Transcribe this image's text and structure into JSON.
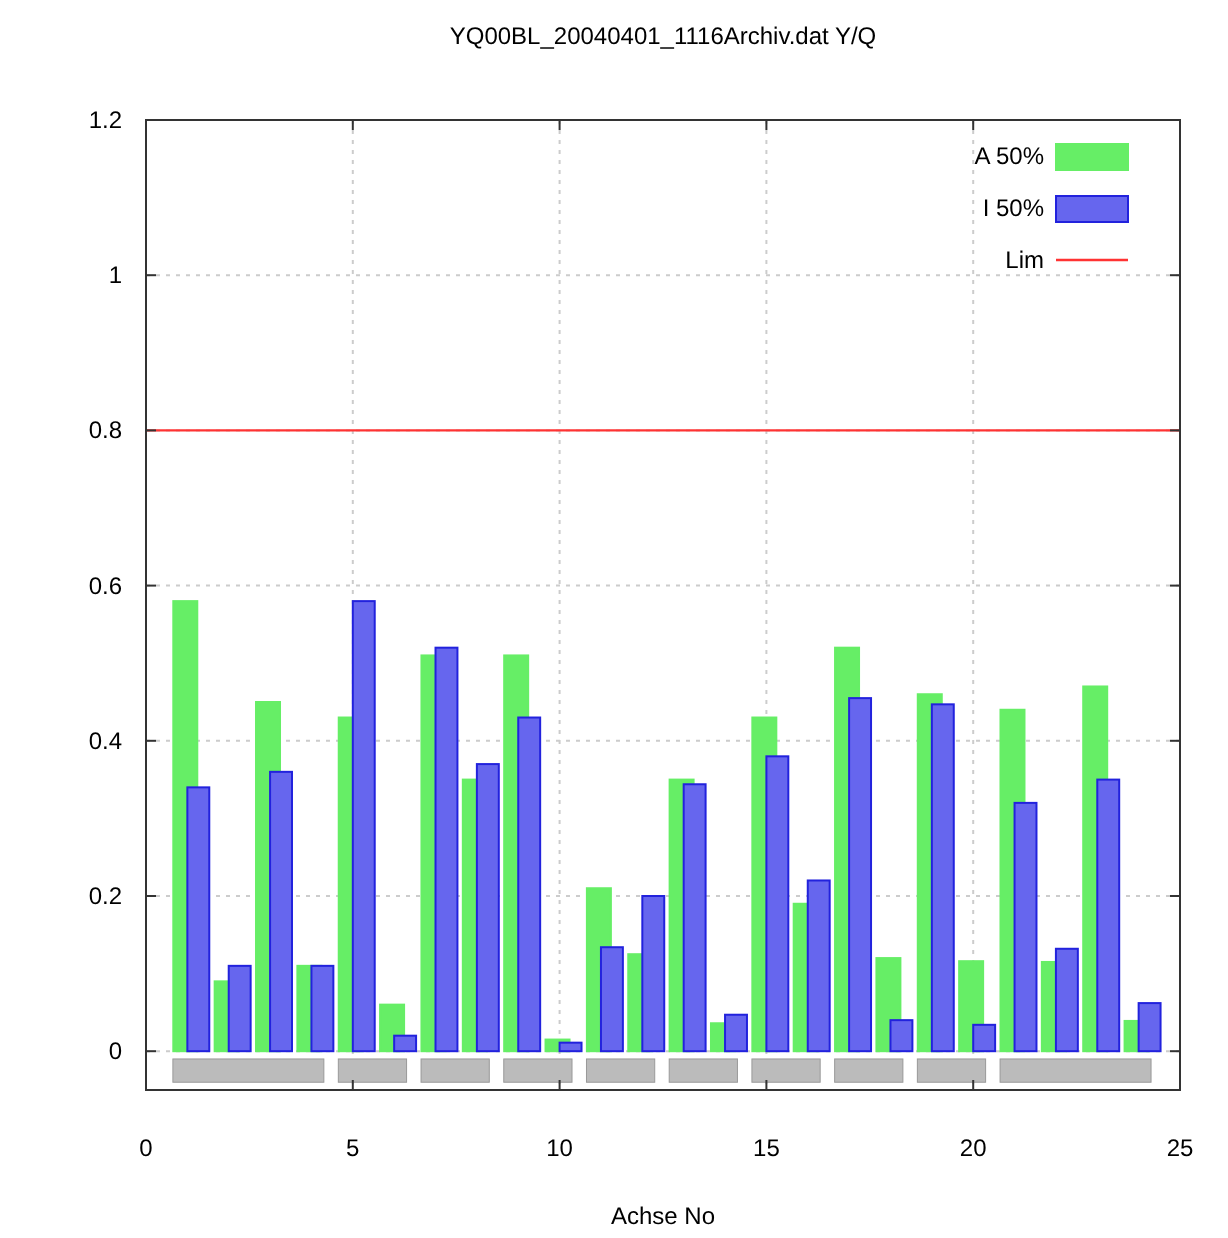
{
  "chart_data": {
    "type": "bar",
    "title": "YQ00BL_20040401_1116Archiv.dat Y/Q",
    "xlabel": "Achse No",
    "x": [
      1,
      2,
      3,
      4,
      5,
      6,
      7,
      8,
      9,
      10,
      11,
      12,
      13,
      14,
      15,
      16,
      17,
      18,
      19,
      20,
      21,
      22,
      23,
      24
    ],
    "series": [
      {
        "name": "A 50%",
        "color": "#66ee66",
        "values": [
          0.58,
          0.09,
          0.45,
          0.11,
          0.43,
          0.06,
          0.51,
          0.35,
          0.51,
          0.015,
          0.21,
          0.125,
          0.35,
          0.036,
          0.43,
          0.19,
          0.52,
          0.12,
          0.46,
          0.116,
          0.44,
          0.115,
          0.47,
          0.039
        ]
      },
      {
        "name": "I 50%",
        "color": "#6666ee",
        "values": [
          0.34,
          0.11,
          0.36,
          0.11,
          0.58,
          0.02,
          0.52,
          0.37,
          0.43,
          0.011,
          0.134,
          0.2,
          0.344,
          0.047,
          0.38,
          0.22,
          0.455,
          0.04,
          0.447,
          0.034,
          0.32,
          0.132,
          0.35,
          0.062
        ]
      },
      {
        "type": "bar",
        "color": "#bbbbbb",
        "x": [
          2.475,
          5.475,
          7.475,
          9.475,
          11.475,
          13.475,
          15.475,
          17.475,
          19.475,
          22.475
        ],
        "base": [
          -0.04,
          -0.04,
          -0.04,
          -0.04,
          -0.04,
          -0.04,
          -0.04,
          -0.04,
          -0.04,
          -0.04
        ],
        "values": [
          0.03,
          0.03,
          0.03,
          0.03,
          0.03,
          0.03,
          0.03,
          0.03,
          0.03,
          0.03
        ]
      }
    ],
    "ref_lines": [
      {
        "axis": "y",
        "value": 0.8,
        "label": "Lim",
        "color": "#ff3333"
      }
    ],
    "xlim": [
      0,
      25
    ],
    "xticks": [
      0,
      5,
      10,
      15,
      20,
      25
    ],
    "ylim": [
      -0.05,
      1.2
    ],
    "yticks": [
      0,
      0.2,
      0.4,
      0.6,
      0.8,
      1,
      1.2
    ],
    "grid": true,
    "legend": "top right"
  }
}
